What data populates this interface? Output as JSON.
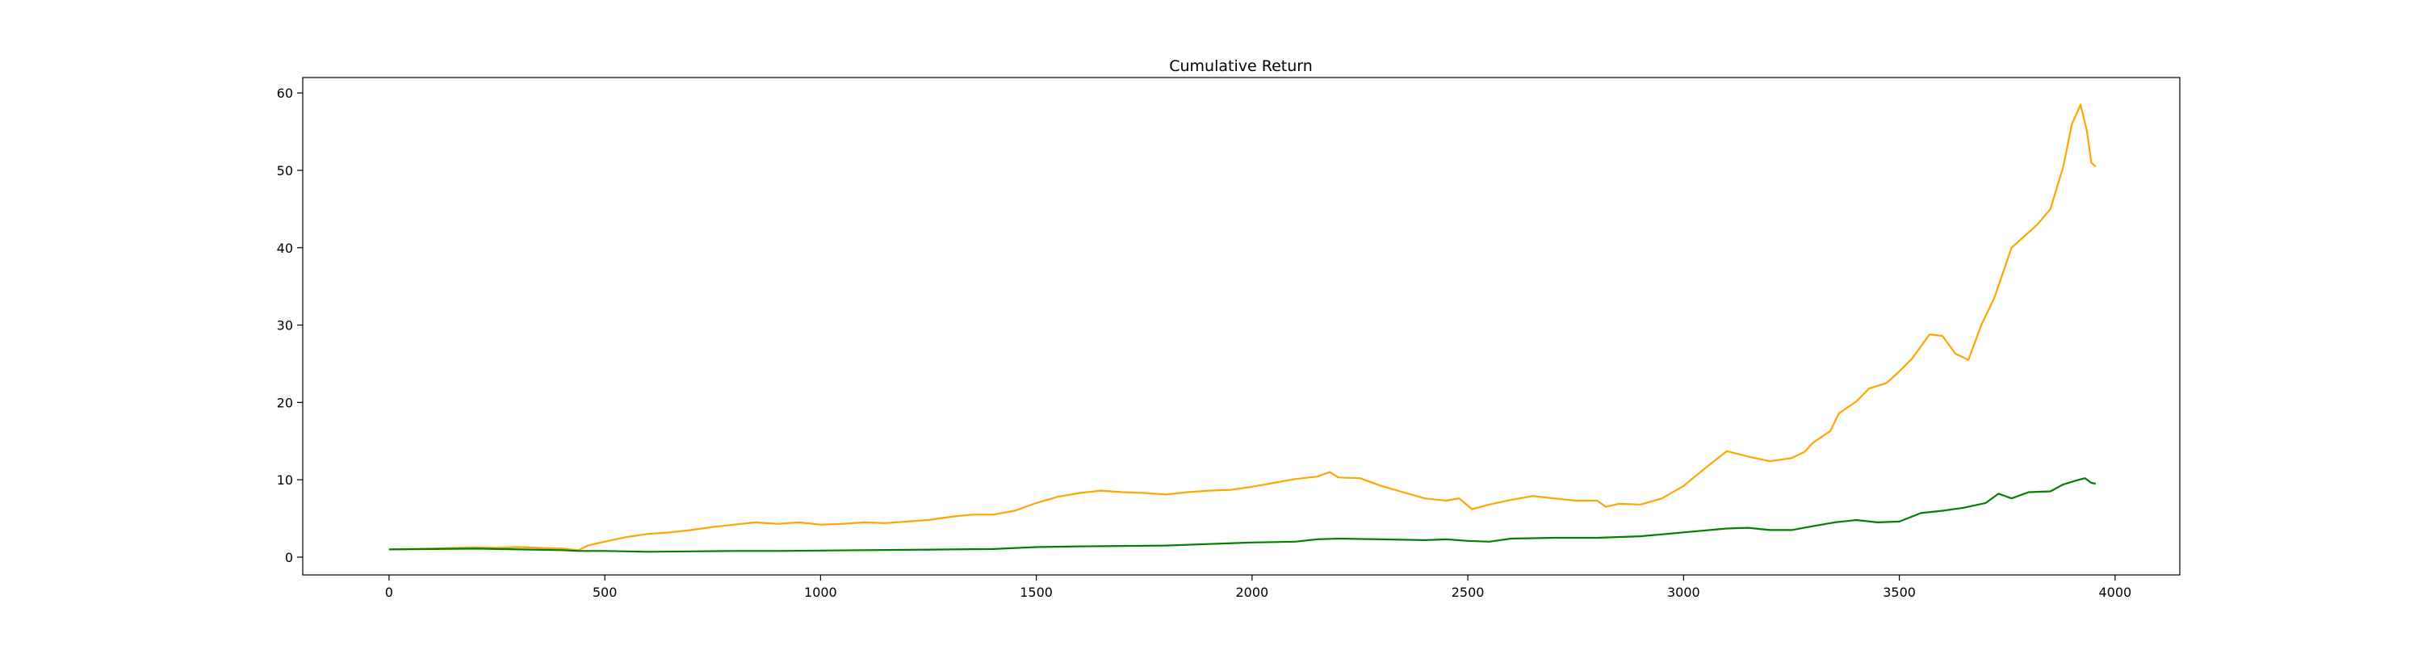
{
  "chart_data": {
    "type": "line",
    "title": "Cumulative Return",
    "xlabel": "",
    "ylabel": "",
    "xlim": [
      -200,
      4150
    ],
    "ylim": [
      -2.3,
      62
    ],
    "x_ticks": [
      0,
      500,
      1000,
      1500,
      2000,
      2500,
      3000,
      3500,
      4000
    ],
    "y_ticks": [
      0,
      10,
      20,
      30,
      40,
      50,
      60
    ],
    "grid": false,
    "legend": false,
    "series": [
      {
        "color": "#ffa500",
        "points": [
          [
            0,
            1.0
          ],
          [
            50,
            1.05
          ],
          [
            100,
            1.1
          ],
          [
            150,
            1.2
          ],
          [
            200,
            1.25
          ],
          [
            250,
            1.2
          ],
          [
            300,
            1.3
          ],
          [
            350,
            1.2
          ],
          [
            400,
            1.1
          ],
          [
            440,
            0.9
          ],
          [
            460,
            1.5
          ],
          [
            500,
            2.0
          ],
          [
            550,
            2.6
          ],
          [
            600,
            3.0
          ],
          [
            650,
            3.2
          ],
          [
            700,
            3.5
          ],
          [
            750,
            3.9
          ],
          [
            800,
            4.2
          ],
          [
            850,
            4.5
          ],
          [
            900,
            4.3
          ],
          [
            950,
            4.5
          ],
          [
            1000,
            4.2
          ],
          [
            1050,
            4.3
          ],
          [
            1100,
            4.5
          ],
          [
            1150,
            4.4
          ],
          [
            1200,
            4.6
          ],
          [
            1250,
            4.8
          ],
          [
            1300,
            5.2
          ],
          [
            1350,
            5.5
          ],
          [
            1400,
            5.5
          ],
          [
            1450,
            6.0
          ],
          [
            1500,
            7.0
          ],
          [
            1550,
            7.8
          ],
          [
            1600,
            8.3
          ],
          [
            1650,
            8.6
          ],
          [
            1700,
            8.4
          ],
          [
            1750,
            8.3
          ],
          [
            1800,
            8.1
          ],
          [
            1850,
            8.4
          ],
          [
            1900,
            8.6
          ],
          [
            1950,
            8.7
          ],
          [
            2000,
            9.1
          ],
          [
            2050,
            9.6
          ],
          [
            2100,
            10.1
          ],
          [
            2150,
            10.4
          ],
          [
            2180,
            11.0
          ],
          [
            2200,
            10.3
          ],
          [
            2250,
            10.2
          ],
          [
            2300,
            9.2
          ],
          [
            2350,
            8.4
          ],
          [
            2400,
            7.6
          ],
          [
            2450,
            7.3
          ],
          [
            2480,
            7.6
          ],
          [
            2510,
            6.2
          ],
          [
            2550,
            6.8
          ],
          [
            2600,
            7.4
          ],
          [
            2650,
            7.9
          ],
          [
            2700,
            7.6
          ],
          [
            2750,
            7.3
          ],
          [
            2800,
            7.3
          ],
          [
            2820,
            6.5
          ],
          [
            2850,
            6.9
          ],
          [
            2900,
            6.8
          ],
          [
            2950,
            7.6
          ],
          [
            3000,
            9.2
          ],
          [
            3050,
            11.5
          ],
          [
            3100,
            13.7
          ],
          [
            3150,
            13.0
          ],
          [
            3200,
            12.4
          ],
          [
            3250,
            12.8
          ],
          [
            3280,
            13.6
          ],
          [
            3300,
            14.8
          ],
          [
            3340,
            16.3
          ],
          [
            3360,
            18.6
          ],
          [
            3400,
            20.1
          ],
          [
            3430,
            21.8
          ],
          [
            3470,
            22.5
          ],
          [
            3500,
            24.0
          ],
          [
            3530,
            25.7
          ],
          [
            3570,
            28.8
          ],
          [
            3600,
            28.6
          ],
          [
            3630,
            26.3
          ],
          [
            3660,
            25.5
          ],
          [
            3690,
            30.0
          ],
          [
            3720,
            33.5
          ],
          [
            3760,
            40.0
          ],
          [
            3790,
            41.5
          ],
          [
            3820,
            43.0
          ],
          [
            3850,
            45.0
          ],
          [
            3880,
            50.5
          ],
          [
            3900,
            56.0
          ],
          [
            3920,
            58.5
          ],
          [
            3935,
            55.0
          ],
          [
            3945,
            51.0
          ],
          [
            3955,
            50.5
          ]
        ]
      },
      {
        "color": "#008000",
        "points": [
          [
            0,
            1.0
          ],
          [
            100,
            1.05
          ],
          [
            200,
            1.1
          ],
          [
            300,
            1.0
          ],
          [
            400,
            0.9
          ],
          [
            440,
            0.8
          ],
          [
            500,
            0.8
          ],
          [
            600,
            0.7
          ],
          [
            700,
            0.75
          ],
          [
            800,
            0.8
          ],
          [
            900,
            0.8
          ],
          [
            1000,
            0.85
          ],
          [
            1100,
            0.9
          ],
          [
            1200,
            0.95
          ],
          [
            1300,
            1.0
          ],
          [
            1400,
            1.05
          ],
          [
            1500,
            1.3
          ],
          [
            1600,
            1.4
          ],
          [
            1700,
            1.45
          ],
          [
            1800,
            1.5
          ],
          [
            1900,
            1.7
          ],
          [
            2000,
            1.9
          ],
          [
            2100,
            2.0
          ],
          [
            2150,
            2.3
          ],
          [
            2200,
            2.4
          ],
          [
            2300,
            2.3
          ],
          [
            2400,
            2.2
          ],
          [
            2450,
            2.3
          ],
          [
            2500,
            2.1
          ],
          [
            2550,
            2.0
          ],
          [
            2600,
            2.4
          ],
          [
            2700,
            2.5
          ],
          [
            2800,
            2.5
          ],
          [
            2900,
            2.7
          ],
          [
            3000,
            3.2
          ],
          [
            3100,
            3.7
          ],
          [
            3150,
            3.8
          ],
          [
            3200,
            3.5
          ],
          [
            3250,
            3.5
          ],
          [
            3300,
            4.0
          ],
          [
            3350,
            4.5
          ],
          [
            3400,
            4.8
          ],
          [
            3450,
            4.5
          ],
          [
            3500,
            4.6
          ],
          [
            3550,
            5.7
          ],
          [
            3600,
            6.0
          ],
          [
            3650,
            6.4
          ],
          [
            3700,
            7.0
          ],
          [
            3730,
            8.2
          ],
          [
            3760,
            7.6
          ],
          [
            3800,
            8.4
          ],
          [
            3850,
            8.5
          ],
          [
            3880,
            9.4
          ],
          [
            3910,
            9.9
          ],
          [
            3930,
            10.2
          ],
          [
            3945,
            9.6
          ],
          [
            3955,
            9.5
          ]
        ]
      }
    ]
  }
}
